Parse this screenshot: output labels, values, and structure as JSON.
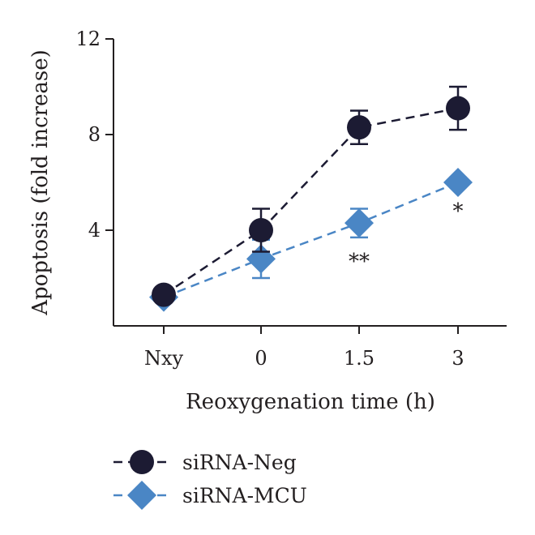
{
  "chart_data": {
    "type": "line",
    "xlabel": "Reoxygenation time (h)",
    "ylabel": "Apoptosis (fold increase)",
    "categories": [
      "Nxy",
      "0",
      "1.5",
      "3"
    ],
    "ylim": [
      0,
      12
    ],
    "yticks": [
      4,
      8,
      12
    ],
    "grid": false,
    "legend_position": "bottom-left",
    "series": [
      {
        "name": "siRNA-Neg",
        "values": [
          1.3,
          4.0,
          8.3,
          9.1
        ],
        "errors": [
          0.3,
          0.9,
          0.7,
          0.9
        ],
        "marker": "circle",
        "line": "dashed",
        "color": "#1c1b33"
      },
      {
        "name": "siRNA-MCU",
        "values": [
          1.2,
          2.8,
          4.3,
          6.0
        ],
        "errors": [
          0.2,
          0.8,
          0.6,
          0.2
        ],
        "marker": "diamond",
        "line": "dashed",
        "color": "#4a86c5"
      }
    ],
    "annotations": [
      {
        "category": "1.5",
        "text": "**"
      },
      {
        "category": "3",
        "text": "*"
      }
    ]
  }
}
